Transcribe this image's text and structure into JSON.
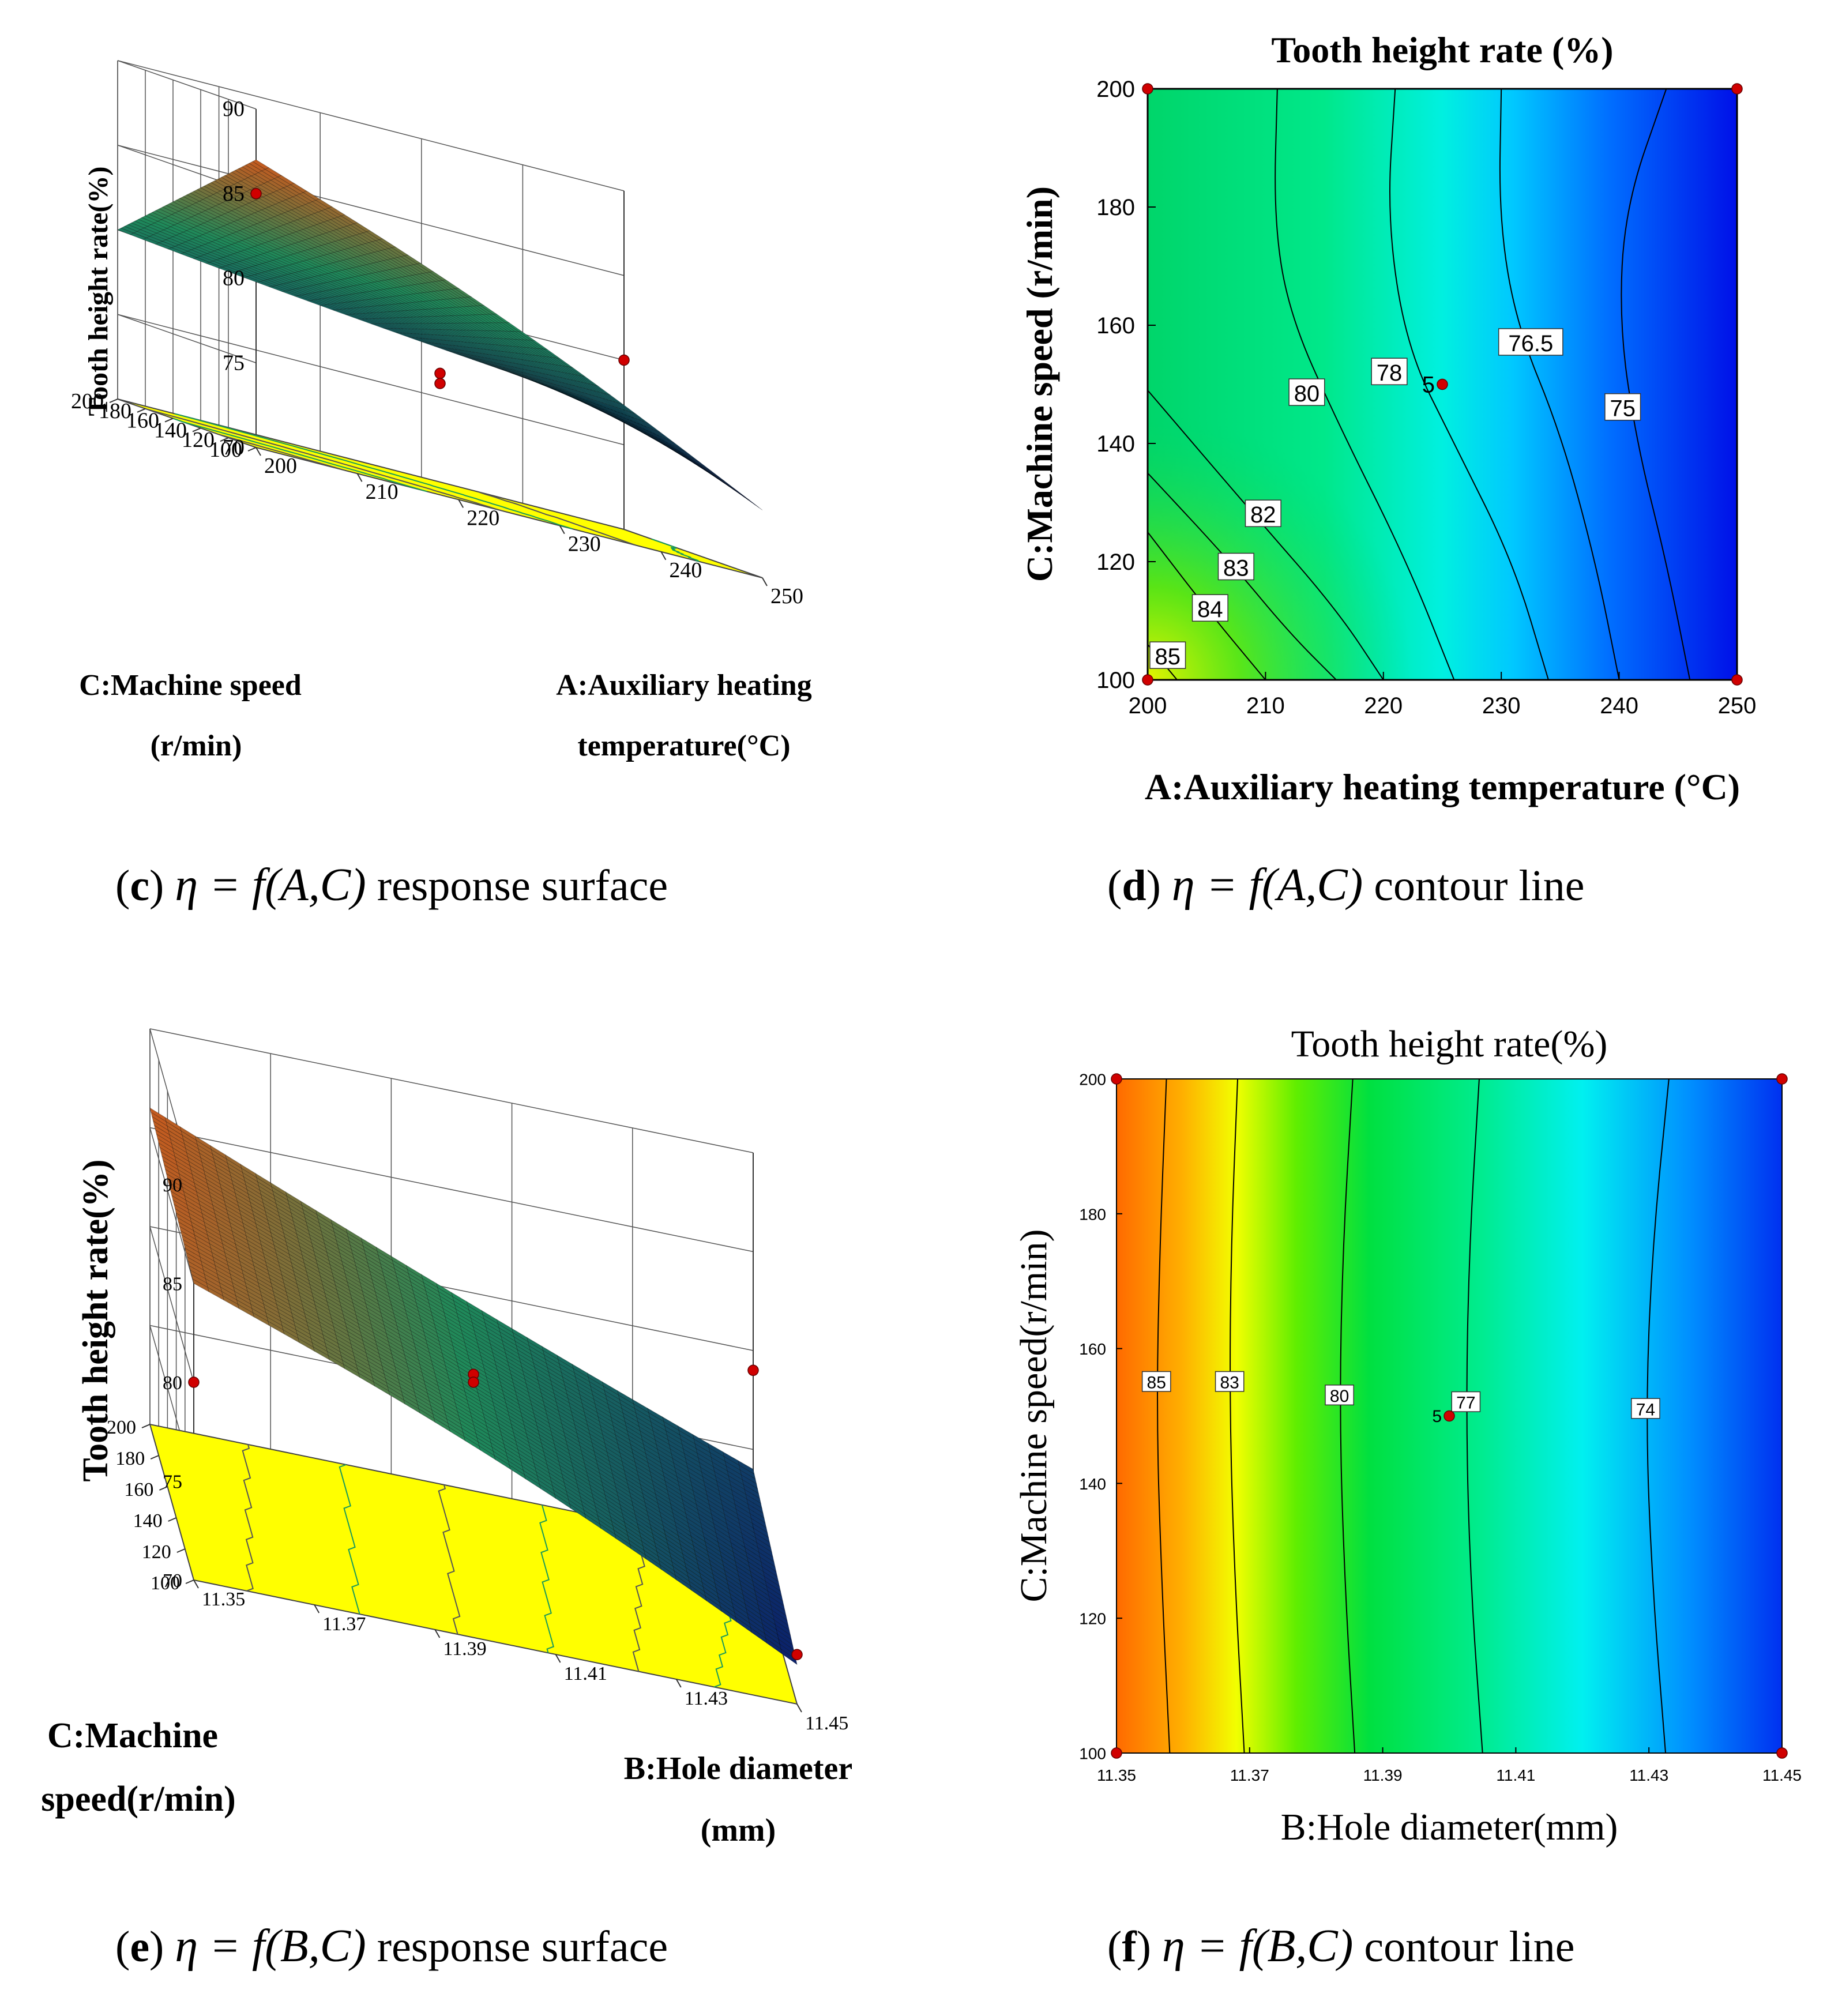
{
  "chart_data": [
    {
      "id": "c",
      "type": "surface",
      "zlabel": "Tooth height rate(%)",
      "xlabel": "A:Auxiliary heating temperature(°C)",
      "xlabel_lines": [
        "A:Auxiliary heating",
        "temperature(°C)"
      ],
      "ylabel": "C:Machine speed (r/min)",
      "ylabel_lines": [
        "C:Machine speed",
        "(r/min)"
      ],
      "x_ticks": [
        "200",
        "210",
        "220",
        "230",
        "240",
        "250"
      ],
      "y_ticks": [
        "100",
        "120",
        "140",
        "160",
        "180",
        "200"
      ],
      "z_ticks": [
        "70",
        "75",
        "80",
        "85",
        "90"
      ],
      "xlim": [
        200,
        250
      ],
      "ylim": [
        100,
        200
      ],
      "zlim": [
        70,
        90
      ],
      "surface_corners": [
        {
          "x": 200,
          "y": 200,
          "z": 80
        },
        {
          "x": 250,
          "y": 200,
          "z": 77
        },
        {
          "x": 250,
          "y": 100,
          "z": 74
        },
        {
          "x": 200,
          "y": 100,
          "z": 87
        }
      ],
      "points": [
        {
          "x": 225,
          "y": 150,
          "z": 76.8
        },
        {
          "x": 225,
          "y": 150,
          "z": 76.2
        },
        {
          "x": 250,
          "y": 200,
          "z": 80
        },
        {
          "x": 200,
          "y": 100,
          "z": 85
        }
      ],
      "caption": {
        "letter": "c",
        "formula": "η = f(A,C)",
        "text": "response surface"
      }
    },
    {
      "id": "d",
      "type": "contour",
      "title": "Tooth height rate (%)",
      "xlabel": "A:Auxiliary heating temperature (°C)",
      "ylabel": "C:Machine speed (r/min)",
      "x_ticks": [
        "200",
        "210",
        "220",
        "230",
        "240",
        "250"
      ],
      "y_ticks": [
        "100",
        "120",
        "140",
        "160",
        "180",
        "200"
      ],
      "xlim": [
        200,
        250
      ],
      "ylim": [
        100,
        200
      ],
      "contours": [
        {
          "level": "85",
          "points": [
            [
              200,
              106
            ],
            [
              202.5,
              100
            ]
          ],
          "label_at": [
            201.7,
            104
          ]
        },
        {
          "level": "84",
          "points": [
            [
              200,
              125
            ],
            [
              205,
              112
            ],
            [
              210,
              100
            ]
          ],
          "label_at": [
            205.3,
            112
          ]
        },
        {
          "level": "83",
          "points": [
            [
              200,
              135
            ],
            [
              207,
              120
            ],
            [
              212,
              108
            ],
            [
              216,
              100
            ]
          ],
          "label_at": [
            207.5,
            119
          ]
        },
        {
          "level": "82",
          "points": [
            [
              200,
              149
            ],
            [
              209,
              128
            ],
            [
              216,
              112
            ],
            [
              220,
              100
            ]
          ],
          "label_at": [
            209.8,
            128
          ]
        },
        {
          "level": "80",
          "points": [
            [
              211,
              200
            ],
            [
              210.7,
              178
            ],
            [
              212,
              162
            ],
            [
              216,
              144
            ],
            [
              222,
              120
            ],
            [
              226,
              100
            ]
          ],
          "label_at": [
            213.5,
            148.5
          ]
        },
        {
          "level": "78",
          "points": [
            [
              221,
              200
            ],
            [
              220.3,
              178
            ],
            [
              222,
              156
            ],
            [
              226,
              140
            ],
            [
              231,
              120
            ],
            [
              234,
              100
            ]
          ],
          "label_at": [
            220.5,
            152
          ]
        },
        {
          "level": "76.5",
          "points": [
            [
              230,
              200
            ],
            [
              229.8,
              178
            ],
            [
              231.3,
              160
            ],
            [
              235,
              142
            ],
            [
              238,
              120
            ],
            [
              240,
              100
            ]
          ],
          "label_at": [
            232.5,
            157
          ]
        },
        {
          "level": "75",
          "points": [
            [
              244,
              200
            ],
            [
              240.5,
              180
            ],
            [
              240,
              160
            ],
            [
              241.5,
              140
            ],
            [
              244,
              120
            ],
            [
              246,
              100
            ]
          ],
          "label_at": [
            240.3,
            146
          ]
        }
      ],
      "design_points": [
        [
          200,
          100
        ],
        [
          200,
          200
        ],
        [
          250,
          100
        ],
        [
          250,
          200
        ]
      ],
      "center_point": {
        "x": 225,
        "y": 150,
        "label": "5"
      },
      "caption": {
        "letter": "d",
        "formula": "η = f(A,C)",
        "text": "contour line"
      }
    },
    {
      "id": "e",
      "type": "surface",
      "zlabel": "Tooth height rate(%)",
      "xlabel": "B:Hole diameter (mm)",
      "xlabel_lines": [
        "B:Hole diameter",
        "(mm)"
      ],
      "ylabel": "C:Machine speed(r/min)",
      "ylabel_lines": [
        "C:Machine",
        "speed(r/min)"
      ],
      "x_ticks": [
        "11.35",
        "11.37",
        "11.39",
        "11.41",
        "11.43",
        "11.45"
      ],
      "y_ticks": [
        "100",
        "120",
        "140",
        "160",
        "180",
        "200"
      ],
      "z_ticks": [
        "70",
        "75",
        "80",
        "85",
        "90"
      ],
      "xlim": [
        11.35,
        11.45
      ],
      "ylim": [
        100,
        200
      ],
      "zlim": [
        70,
        90
      ],
      "surface_corners": [
        {
          "x": 11.35,
          "y": 200,
          "z": 86
        },
        {
          "x": 11.45,
          "y": 200,
          "z": 74
        },
        {
          "x": 11.45,
          "y": 100,
          "z": 72
        },
        {
          "x": 11.35,
          "y": 100,
          "z": 85
        }
      ],
      "points": [
        {
          "x": 11.4,
          "y": 150,
          "z": 79.6
        },
        {
          "x": 11.4,
          "y": 150,
          "z": 79.2
        },
        {
          "x": 11.45,
          "y": 200,
          "z": 79
        },
        {
          "x": 11.35,
          "y": 100,
          "z": 80
        },
        {
          "x": 11.45,
          "y": 100,
          "z": 72.5
        }
      ],
      "caption": {
        "letter": "e",
        "formula": "η = f(B,C)",
        "text": "response surface"
      }
    },
    {
      "id": "f",
      "type": "contour",
      "title": "Tooth height rate(%)",
      "xlabel": "B:Hole diameter(mm)",
      "ylabel": "C:Machine speed(r/min)",
      "x_ticks": [
        "11.35",
        "11.37",
        "11.39",
        "11.41",
        "11.43",
        "11.45"
      ],
      "y_ticks": [
        "100",
        "120",
        "140",
        "160",
        "180",
        "200"
      ],
      "xlim": [
        11.35,
        11.45
      ],
      "ylim": [
        100,
        200
      ],
      "contours": [
        {
          "level": "85",
          "points": [
            [
              11.3575,
              200
            ],
            [
              11.3565,
              175
            ],
            [
              11.356,
              150
            ],
            [
              11.3568,
              125
            ],
            [
              11.358,
              100
            ]
          ],
          "label_at": [
            11.356,
            155
          ]
        },
        {
          "level": "83",
          "points": [
            [
              11.3682,
              200
            ],
            [
              11.3672,
              175
            ],
            [
              11.367,
              150
            ],
            [
              11.3678,
              125
            ],
            [
              11.3692,
              100
            ]
          ],
          "label_at": [
            11.367,
            155
          ]
        },
        {
          "level": "80",
          "points": [
            [
              11.3855,
              200
            ],
            [
              11.384,
              175
            ],
            [
              11.3835,
              150
            ],
            [
              11.3843,
              125
            ],
            [
              11.3858,
              100
            ]
          ],
          "label_at": [
            11.3835,
            153
          ]
        },
        {
          "level": "77",
          "points": [
            [
              11.4045,
              200
            ],
            [
              11.403,
              175
            ],
            [
              11.4025,
              150
            ],
            [
              11.4032,
              125
            ],
            [
              11.405,
              100
            ]
          ],
          "label_at": [
            11.4025,
            152
          ]
        },
        {
          "level": "74",
          "points": [
            [
              11.433,
              200
            ],
            [
              11.4305,
              175
            ],
            [
              11.4295,
              150
            ],
            [
              11.4305,
              125
            ],
            [
              11.4325,
              100
            ]
          ],
          "label_at": [
            11.4295,
            151
          ]
        }
      ],
      "design_points": [
        [
          11.35,
          100
        ],
        [
          11.35,
          200
        ],
        [
          11.45,
          100
        ],
        [
          11.45,
          200
        ]
      ],
      "center_point": {
        "x": 11.4,
        "y": 150,
        "label": "5"
      },
      "caption": {
        "letter": "f",
        "formula": "η = f(B,C)",
        "text": "contour line"
      }
    }
  ],
  "colors": {
    "floor_yellow": "#ffff00",
    "design_point": "#d00000",
    "contour_line": "#000000",
    "surface_high": "#c85a1e",
    "surface_mid": "#1f8a5a",
    "surface_low": "#0a1f6b"
  }
}
